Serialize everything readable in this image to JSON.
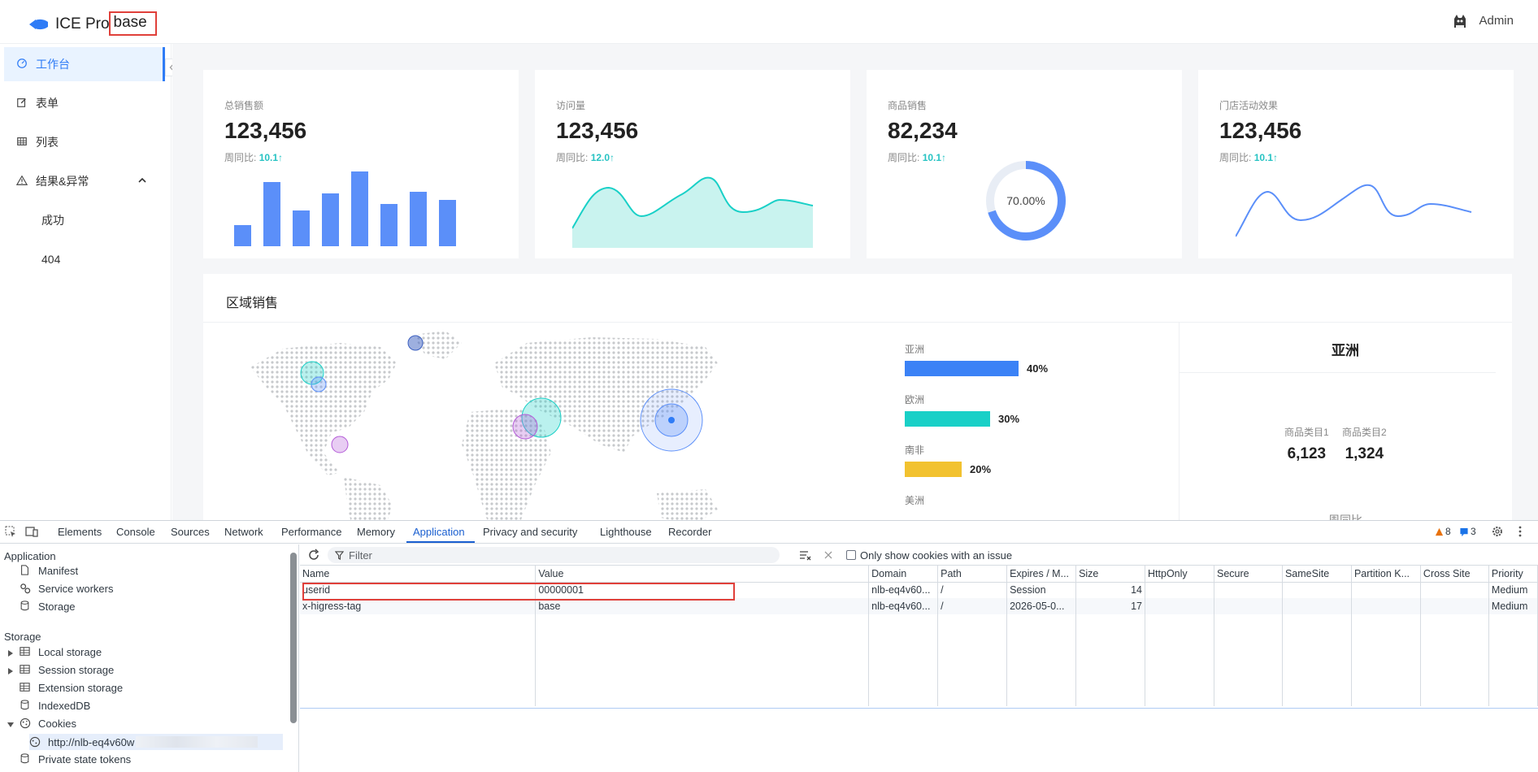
{
  "header": {
    "brand": "ICE Pro",
    "badge": "base",
    "user": "Admin"
  },
  "sidebar": {
    "items": [
      {
        "label": "工作台",
        "icon": "dashboard-icon",
        "active": true
      },
      {
        "label": "表单",
        "icon": "form-edit-icon"
      },
      {
        "label": "列表",
        "icon": "table-icon"
      },
      {
        "label": "结果&异常",
        "icon": "warning-icon",
        "expanded": true
      },
      {
        "label": "成功",
        "sub": true
      },
      {
        "label": "404",
        "sub": true
      }
    ]
  },
  "cards": [
    {
      "label": "总销售额",
      "value": "123,456",
      "compare_label": "周同比:",
      "compare_value": "10.1↑"
    },
    {
      "label": "访问量",
      "value": "123,456",
      "compare_label": "周同比:",
      "compare_value": "12.0↑"
    },
    {
      "label": "商品销售",
      "value": "82,234",
      "compare_label": "周同比:",
      "compare_value": "10.1↑",
      "donut_label": "70.00%"
    },
    {
      "label": "门店活动效果",
      "value": "123,456",
      "compare_label": "周同比:",
      "compare_value": "10.1↑"
    }
  ],
  "region": {
    "title": "区域销售",
    "bars": [
      {
        "label": "亚洲",
        "pct": "40%",
        "color": "#3b82f6"
      },
      {
        "label": "欧洲",
        "pct": "30%",
        "color": "#19d0c7"
      },
      {
        "label": "南非",
        "pct": "20%",
        "color": "#f2c230"
      },
      {
        "label": "美洲"
      }
    ],
    "side_title": "亚洲",
    "cat1_label": "商品类目1",
    "cat1_value": "6,123",
    "cat2_label": "商品类目2",
    "cat2_value": "1,324",
    "yoy_label": "周同比"
  },
  "devtools": {
    "tabs": [
      "Elements",
      "Console",
      "Sources",
      "Network",
      "Performance",
      "Memory",
      "Application",
      "Privacy and security",
      "Lighthouse",
      "Recorder"
    ],
    "active_tab": "Application",
    "warnings": "8",
    "messages": "3",
    "tree": {
      "application_head": "Application",
      "manifest": "Manifest",
      "service_workers": "Service workers",
      "storage_item": "Storage",
      "storage_head": "Storage",
      "local_storage": "Local storage",
      "session_storage": "Session storage",
      "extension_storage": "Extension storage",
      "indexeddb": "IndexedDB",
      "cookies": "Cookies",
      "cookie_origin": "http://nlb-eq4v60w",
      "private_state_tokens": "Private state tokens"
    },
    "filter_placeholder": "Filter",
    "only_issues_label": "Only show cookies with an issue",
    "columns": [
      "Name",
      "Value",
      "Domain",
      "Path",
      "Expires / M...",
      "Size",
      "HttpOnly",
      "Secure",
      "SameSite",
      "Partition K...",
      "Cross Site",
      "Priority"
    ],
    "rows": [
      [
        "userid",
        "00000001",
        "nlb-eq4v60...",
        "/",
        "Session",
        "14",
        "",
        "",
        "",
        "",
        "",
        "Medium"
      ],
      [
        "x-higress-tag",
        "base",
        "nlb-eq4v60...",
        "/",
        "2026-05-0...",
        "17",
        "",
        "",
        "",
        "",
        "",
        "Medium"
      ]
    ]
  }
}
